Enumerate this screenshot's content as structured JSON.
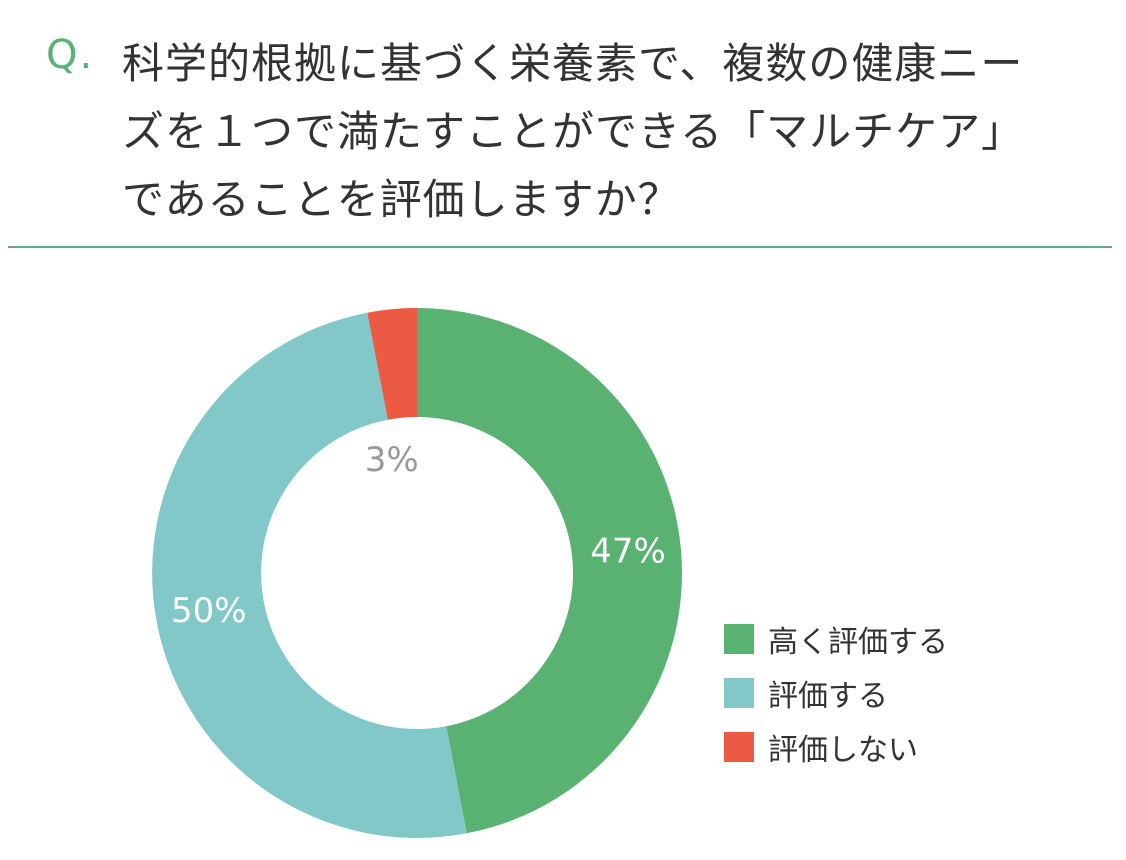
{
  "question": {
    "marker": "Q.",
    "text": "科学的根拠に基づく栄養素で、複数の健康ニーズを１つで満たすことができる「マルチケア」であることを評価しますか？"
  },
  "chart_data": {
    "type": "pie",
    "donut": true,
    "title": "",
    "slices": [
      {
        "label": "高く評価する",
        "value": 47,
        "value_label": "47%",
        "color": "#5ab272"
      },
      {
        "label": "評価する",
        "value": 50,
        "value_label": "50%",
        "color": "#83c8c9"
      },
      {
        "label": "評価しない",
        "value": 3,
        "value_label": "3%",
        "color": "#ed5a44"
      }
    ],
    "legend_position": "right-bottom",
    "start": "top-clockwise"
  }
}
